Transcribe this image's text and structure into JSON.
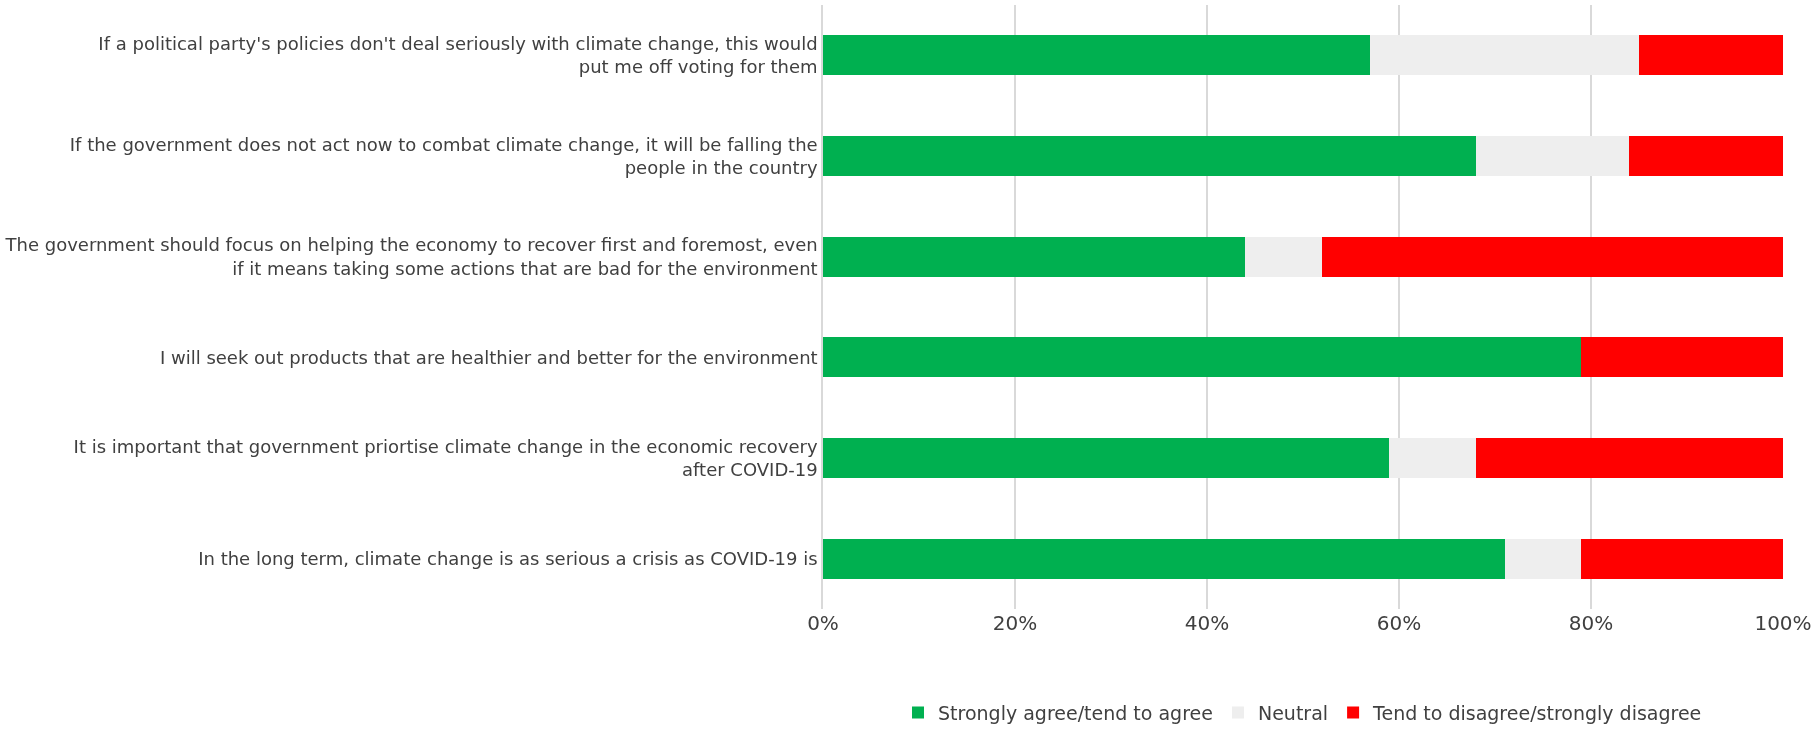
{
  "chart_data": {
    "type": "bar",
    "orientation": "horizontal",
    "stacked": true,
    "categories": [
      "If a political party's policies don't deal seriously with climate change, this would put me off voting for them",
      "If the government does not act now to combat climate change, it will be falling the people in the country",
      "The government should focus on helping the economy to recover first and foremost, even if it means taking some actions that are bad for the environment",
      "I will seek out products that are healthier and better for the environment",
      "It is important that government priortise climate change in the economic recovery after COVID-19",
      "In the long term, climate change is as serious a crisis as COVID-19 is"
    ],
    "series": [
      {
        "name": "Strongly agree/tend to agree",
        "color": "#00b050",
        "values": [
          57,
          68,
          44,
          79,
          59,
          71
        ]
      },
      {
        "name": "Neutral",
        "color": "#eeeeee",
        "values": [
          28,
          16,
          8,
          0,
          9,
          8
        ]
      },
      {
        "name": "Tend to disagree/strongly disagree",
        "color": "#ff0000",
        "values": [
          15,
          16,
          48,
          21,
          32,
          21
        ]
      }
    ],
    "xlim": [
      0,
      100
    ],
    "xticks": [
      {
        "value": 0,
        "label": "0%"
      },
      {
        "value": 20,
        "label": "20%"
      },
      {
        "value": 40,
        "label": "40%"
      },
      {
        "value": 60,
        "label": "60%"
      },
      {
        "value": 80,
        "label": "80%"
      },
      {
        "value": 100,
        "label": "100%"
      }
    ],
    "grid": "x",
    "legend": "bottom"
  }
}
